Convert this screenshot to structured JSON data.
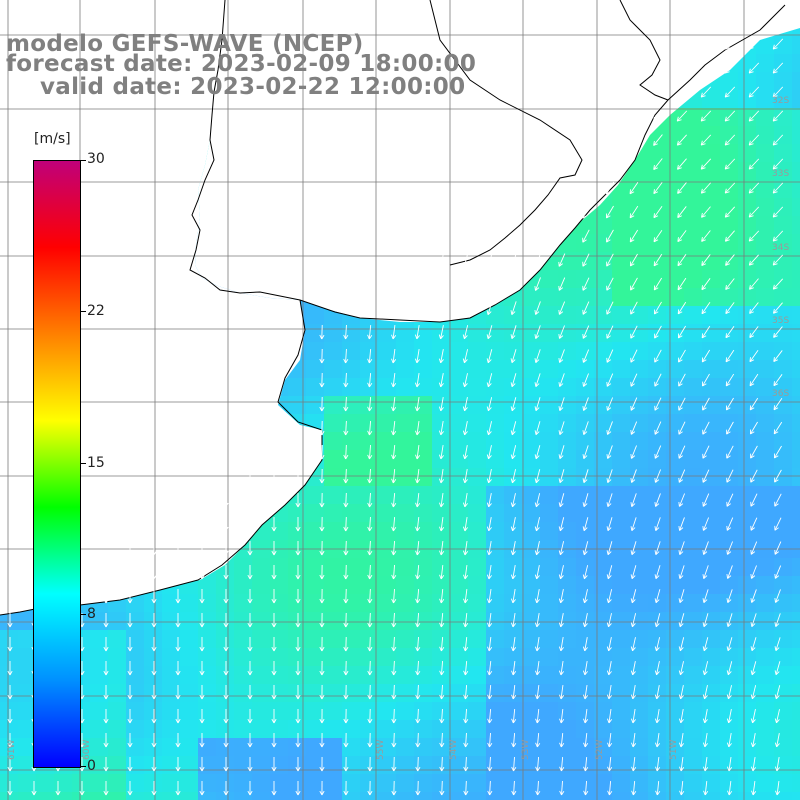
{
  "title": {
    "line1": "modelo GEFS-WAVE (NCEP)",
    "line2": "forecast date: 2023-02-09 18:00:00",
    "line3": "valid date: 2023-02-22 12:00:00"
  },
  "colorbar": {
    "unit": "[m/s]",
    "ticks": [
      "30",
      "22",
      "15",
      "8",
      "0"
    ],
    "stops": [
      "#0000ff",
      "#0090ff",
      "#00ffff",
      "#00ff00",
      "#ffff00",
      "#ff8000",
      "#ff0000",
      "#c0007a"
    ]
  },
  "map": {
    "lat_labels": [
      "32S",
      "33S",
      "34S",
      "35S",
      "36S"
    ],
    "lon_labels": [
      "61W",
      "60W",
      "55W",
      "54W",
      "53W",
      "52W",
      "51W"
    ],
    "land_color": "#ffffff",
    "coast_color": "#000000",
    "grid_color": "#7a7a7a",
    "arrow_color": "#ffffff",
    "wind_direction": "from north-east / north",
    "sea_color_low": "#3fa8ff",
    "sea_color_mid": "#22e6f0",
    "sea_color_high": "#33f59a"
  }
}
